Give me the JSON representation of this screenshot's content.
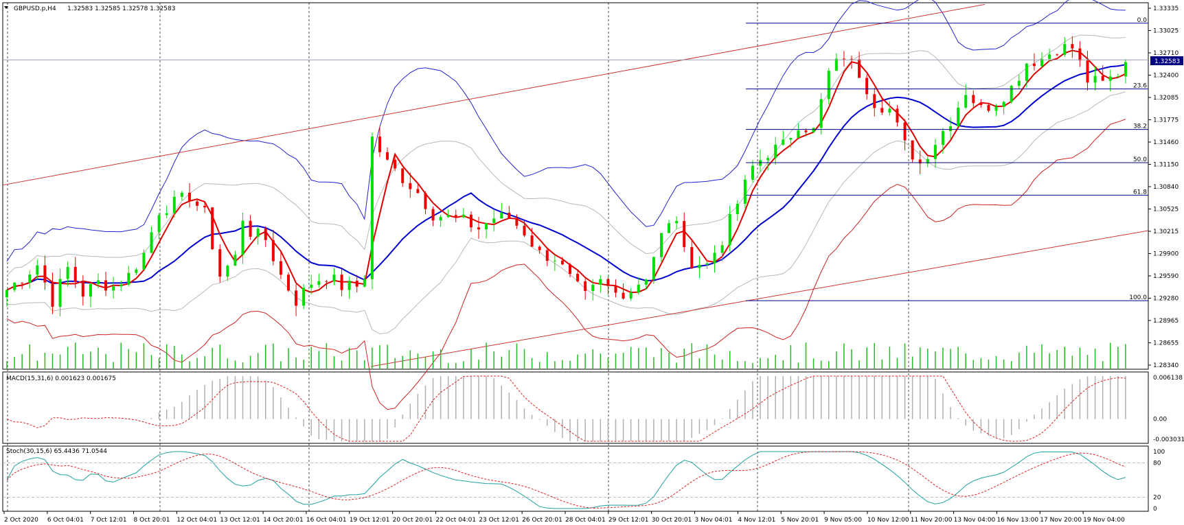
{
  "header": {
    "symbol": "GBPUSD.p,H4",
    "ohlc": "1.32583 1.32585 1.32578 1.32583",
    "macd": "MACD(15,31,6) 0.001623 0.001675",
    "stoch": "Stoch(30,15,6) 65.4436 71.0544"
  },
  "colors": {
    "bull": "#00dd00",
    "bear": "#ee0000",
    "ma_red": "#dd0000",
    "ma_blue": "#0000cc",
    "band_outer_blue": "#2222cc",
    "band_outer_red": "#cc2222",
    "band_inner": "#b8b8b8",
    "channel": "#cc3333",
    "fib": "#000080",
    "volume": "#22bb22",
    "macd_hist": "#b0b0b0",
    "macd_signal": "#dd2222",
    "stoch_main": "#20a0a0",
    "stoch_signal": "#dd2222"
  },
  "current_price": "1.32583",
  "price_axis": {
    "labels": [
      "1.33335",
      "1.33025",
      "1.32710",
      "1.32400",
      "1.32085",
      "1.31775",
      "1.31460",
      "1.31150",
      "1.30840",
      "1.30525",
      "1.30215",
      "1.29900",
      "1.29590",
      "1.29280",
      "1.28965",
      "1.28655",
      "1.28340"
    ],
    "min": 1.2834,
    "max": 1.33335
  },
  "macd_axis": {
    "labels": [
      "0.006138",
      "0.00",
      "-0.003031"
    ]
  },
  "stoch_axis": {
    "labels": [
      "100",
      "80",
      "20",
      "0"
    ]
  },
  "fib_levels": [
    {
      "label": "0.0",
      "price": 1.3309
    },
    {
      "label": "23.6",
      "price": 1.3218
    },
    {
      "label": "38.2",
      "price": 1.3162
    },
    {
      "label": "50.0",
      "price": 1.3116
    },
    {
      "label": "61.8",
      "price": 1.3071
    },
    {
      "label": "100.0",
      "price": 1.2925
    }
  ],
  "time_axis": {
    "labels": [
      "2 Oct 2020",
      "6 Oct 04:01",
      "7 Oct 12:01",
      "8 Oct 20:01",
      "12 Oct 04:01",
      "13 Oct 12:01",
      "14 Oct 20:01",
      "16 Oct 04:01",
      "19 Oct 12:01",
      "20 Oct 20:01",
      "22 Oct 04:01",
      "23 Oct 12:01",
      "26 Oct 20:01",
      "28 Oct 04:01",
      "29 Oct 12:01",
      "30 Oct 20:01",
      "3 Nov 04:01",
      "4 Nov 12:01",
      "5 Nov 20:01",
      "9 Nov 05:00",
      "10 Nov 12:00",
      "11 Nov 20:00",
      "13 Nov 04:00",
      "16 Nov 13:00",
      "17 Nov 20:00",
      "19 Nov 04:00"
    ]
  },
  "chart_data": {
    "type": "candlestick",
    "symbol": "GBPUSD.p,H4",
    "ylim": [
      1.2834,
      1.33335
    ],
    "close_path": [
      [
        0,
        1.294
      ],
      [
        4,
        1.2975
      ],
      [
        6,
        1.2925
      ],
      [
        8,
        1.297
      ],
      [
        10,
        1.2935
      ],
      [
        12,
        1.295
      ],
      [
        14,
        1.2945
      ],
      [
        16,
        1.296
      ],
      [
        18,
        1.299
      ],
      [
        20,
        1.305
      ],
      [
        22,
        1.306
      ],
      [
        24,
        1.307
      ],
      [
        26,
        1.3045
      ],
      [
        28,
        1.296
      ],
      [
        30,
        1.2985
      ],
      [
        31,
        1.304
      ],
      [
        32,
        1.302
      ],
      [
        34,
        1.301
      ],
      [
        36,
        1.296
      ],
      [
        38,
        1.2925
      ],
      [
        40,
        1.295
      ],
      [
        42,
        1.296
      ],
      [
        44,
        1.2945
      ],
      [
        46,
        1.2945
      ],
      [
        47,
        1.296
      ],
      [
        48,
        1.315
      ],
      [
        50,
        1.3115
      ],
      [
        52,
        1.3095
      ],
      [
        54,
        1.3075
      ],
      [
        56,
        1.3045
      ],
      [
        58,
        1.304
      ],
      [
        60,
        1.3035
      ],
      [
        62,
        1.3025
      ],
      [
        64,
        1.304
      ],
      [
        66,
        1.304
      ],
      [
        68,
        1.302
      ],
      [
        70,
        1.299
      ],
      [
        72,
        1.2985
      ],
      [
        74,
        1.2955
      ],
      [
        76,
        1.293
      ],
      [
        78,
        1.295
      ],
      [
        80,
        1.2935
      ],
      [
        82,
        1.294
      ],
      [
        84,
        1.296
      ],
      [
        86,
        1.3015
      ],
      [
        88,
        1.304
      ],
      [
        89,
        1.299
      ],
      [
        90,
        1.298
      ],
      [
        92,
        1.2975
      ],
      [
        94,
        1.301
      ],
      [
        96,
        1.306
      ],
      [
        98,
        1.311
      ],
      [
        100,
        1.313
      ],
      [
        102,
        1.314
      ],
      [
        104,
        1.317
      ],
      [
        106,
        1.316
      ],
      [
        108,
        1.324
      ],
      [
        110,
        1.3265
      ],
      [
        112,
        1.324
      ],
      [
        114,
        1.32
      ],
      [
        116,
        1.319
      ],
      [
        118,
        1.314
      ],
      [
        120,
        1.3115
      ],
      [
        122,
        1.3145
      ],
      [
        124,
        1.3175
      ],
      [
        126,
        1.3215
      ],
      [
        128,
        1.319
      ],
      [
        130,
        1.32
      ],
      [
        132,
        1.322
      ],
      [
        134,
        1.3255
      ],
      [
        136,
        1.326
      ],
      [
        138,
        1.3275
      ],
      [
        140,
        1.3275
      ],
      [
        142,
        1.323
      ],
      [
        144,
        1.3225
      ],
      [
        146,
        1.324
      ],
      [
        147,
        1.3258
      ]
    ]
  }
}
